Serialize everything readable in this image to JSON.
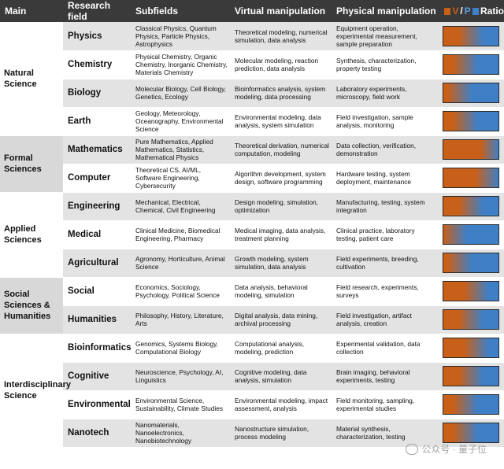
{
  "header": {
    "main": "Main",
    "field": "Research field",
    "subfields": "Subfields",
    "virtual": "Virtual manipulation",
    "physical": "Physical manipulation",
    "ratio_v": "V",
    "ratio_sep": "/",
    "ratio_p": "P",
    "ratio_label": "Ratio"
  },
  "colors": {
    "virtual": "#c8601a",
    "physical": "#3f7fc6",
    "header_bg": "#3a3a3a"
  },
  "groups": [
    {
      "main": "Natural Science",
      "rows": [
        {
          "field": "Physics",
          "subfields": "Classical Physics, Quantum Physics, Particle Physics, Astrophysics",
          "virtual": "Theoretical modeling, numerical simulation, data analysis",
          "physical": "Equipment operation, experimental measurement, sample preparation",
          "ratio": 0.5
        },
        {
          "field": "Chemistry",
          "subfields": "Physical Chemistry, Organic Chemistry, Inorganic Chemistry, Materials Chemistry",
          "virtual": "Molecular modeling, reaction prediction, data analysis",
          "physical": "Synthesis, characterization, property testing",
          "ratio": 0.4
        },
        {
          "field": "Biology",
          "subfields": "Molecular Biology, Cell Biology, Genetics, Ecology",
          "virtual": "Bioinformatics analysis, system modeling, data processing",
          "physical": "Laboratory experiments, microscopy, field work",
          "ratio": 0.3
        },
        {
          "field": "Earth",
          "subfields": "Geology, Meteorology, Oceanography, Environmental Science",
          "virtual": "Environmental modeling, data analysis, system simulation",
          "physical": "Field investigation, sample analysis, monitoring",
          "ratio": 0.4
        }
      ]
    },
    {
      "main": "Formal Sciences",
      "rows": [
        {
          "field": "Mathematics",
          "subfields": "Pure Mathematics, Applied Mathematics, Statistics, Mathematical Physics",
          "virtual": "Theoretical derivation, numerical computation, modeling",
          "physical": "Data collection, verification, demonstration",
          "ratio": 0.9
        },
        {
          "field": "Computer",
          "subfields": "Theoretical CS, AI/ML, Software Engineering, Cybersecurity",
          "virtual": "Algorithm development, system design, software programming",
          "physical": "Hardware testing, system deployment, maintenance",
          "ratio": 0.8
        }
      ]
    },
    {
      "main": "Applied Sciences",
      "rows": [
        {
          "field": "Engineering",
          "subfields": "Mechanical, Electrical, Chemical, Civil Engineering",
          "virtual": "Design modeling, simulation, optimization",
          "physical": "Manufacturing, testing, system integration",
          "ratio": 0.5
        },
        {
          "field": "Medical",
          "subfields": "Clinical Medicine, Biomedical Engineering, Pharmacy",
          "virtual": "Medical imaging, data analysis, treatment planning",
          "physical": "Clinical practice, laboratory testing, patient care",
          "ratio": 0.2
        },
        {
          "field": "Agricultural",
          "subfields": "Agronomy, Horticulture, Animal Science",
          "virtual": "Growth modeling, system simulation, data analysis",
          "physical": "Field experiments, breeding, cultivation",
          "ratio": 0.3
        }
      ]
    },
    {
      "main": "Social Sciences & Humanities",
      "rows": [
        {
          "field": "Social",
          "subfields": "Economics, Sociology, Psychology, Political Science",
          "virtual": "Data analysis, behavioral modeling, simulation",
          "physical": "Field research, experiments, surveys",
          "ratio": 0.6
        },
        {
          "field": "Humanities",
          "subfields": "Philosophy, History, Literature, Arts",
          "virtual": "Digital analysis, data mining, archival processing",
          "physical": "Field investigation, artifact analysis, creation",
          "ratio": 0.5
        }
      ]
    },
    {
      "main": "Interdisciplinary Science",
      "rows": [
        {
          "field": "Bioinformatics",
          "subfields": "Genomics, Systems Biology, Computational Biology",
          "virtual": "Computational analysis, modeling, prediction",
          "physical": "Experimental validation, data collection",
          "ratio": 0.6
        },
        {
          "field": "Cognitive",
          "subfields": "Neuroscience, Psychology, AI, Linguistics",
          "virtual": "Cognitive modeling, data analysis, simulation",
          "physical": "Brain imaging, behavioral experiments, testing",
          "ratio": 0.5
        },
        {
          "field": "Environmental",
          "subfields": "Environmental Science, Sustainability, Climate Studies",
          "virtual": "Environmental modeling, impact assessment, analysis",
          "physical": "Field monitoring, sampling, experimental studies",
          "ratio": 0.4
        },
        {
          "field": "Nanotech",
          "subfields": "Nanomaterials, Nanoelectronics, Nanobiotechnology",
          "virtual": "Nanostructure simulation, process modeling",
          "physical": "Material synthesis, characterization, testing",
          "ratio": 0.4
        }
      ]
    }
  ],
  "watermark": "公众号 · 量子位"
}
